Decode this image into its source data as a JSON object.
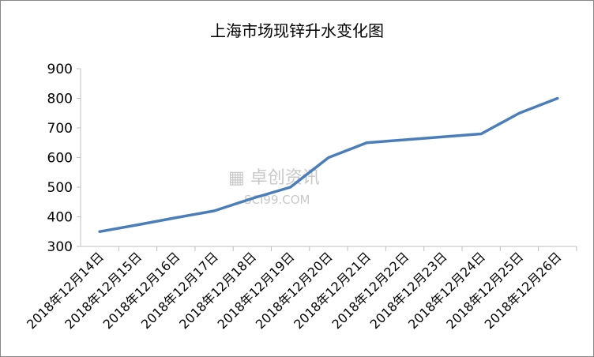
{
  "chart_data": {
    "type": "line",
    "title": "上海市场现锌升水变化图",
    "categories": [
      "2018年12月14日",
      "2018年12月15日",
      "2018年12月16日",
      "2018年12月17日",
      "2018年12月18日",
      "2018年12月19日",
      "2018年12月20日",
      "2018年12月21日",
      "2018年12月22日",
      "2018年12月23日",
      "2018年12月24日",
      "2018年12月25日",
      "2018年12月26日"
    ],
    "values": [
      350,
      373,
      397,
      420,
      462,
      500,
      600,
      650,
      660,
      670,
      680,
      750,
      800
    ],
    "ylim": [
      300,
      900
    ],
    "yticks": [
      300,
      400,
      500,
      600,
      700,
      800,
      900
    ],
    "grid": false,
    "legend": "none",
    "line_color": "#4a7ebb",
    "xlabel": "",
    "ylabel": ""
  },
  "watermark": {
    "brand": "卓创资讯",
    "site": "SCI99.COM"
  }
}
